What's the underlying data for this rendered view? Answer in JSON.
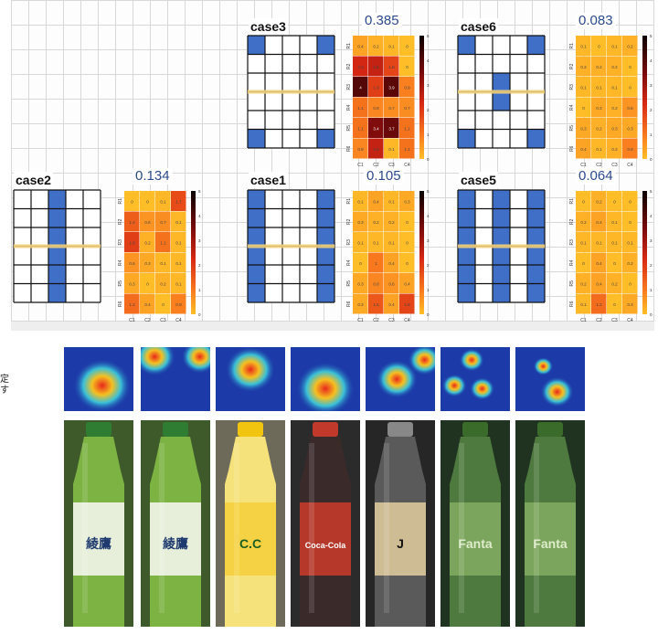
{
  "side_text": "定す",
  "colorbar_ticks": [
    "5",
    "4",
    "3",
    "2",
    "1",
    "0"
  ],
  "heatmap_row_labels": [
    "R1",
    "R2",
    "R3",
    "R4",
    "R5",
    "R6"
  ],
  "heatmap_col_labels": [
    "C1",
    "C2",
    "C3",
    "C4"
  ],
  "cases": [
    {
      "id": "case3",
      "label": "case3",
      "score": "0.385",
      "blue_cells": [
        [
          0,
          0
        ],
        [
          0,
          4
        ],
        [
          5,
          0
        ],
        [
          5,
          4
        ]
      ],
      "heat": [
        [
          "0.4",
          "0.2",
          "0.1",
          "0"
        ],
        [
          "2.3",
          "2.5",
          "1.8",
          "0"
        ],
        [
          "4",
          "1.9",
          "3.9",
          "0.9"
        ],
        [
          "1.1",
          "0.8",
          "0.7",
          "0.7"
        ],
        [
          "1.1",
          "3.4",
          "3.7",
          "1.1"
        ],
        [
          "0.8",
          "2.5",
          "0.1",
          "1.1"
        ]
      ]
    },
    {
      "id": "case6",
      "label": "case6",
      "score": "0.083",
      "blue_cells": [
        [
          0,
          0
        ],
        [
          0,
          4
        ],
        [
          2,
          2
        ],
        [
          3,
          2
        ],
        [
          5,
          0
        ],
        [
          5,
          4
        ]
      ],
      "heat": [
        [
          "0.1",
          "0",
          "0.1",
          "0.2"
        ],
        [
          "0.2",
          "0.2",
          "0.2",
          "0"
        ],
        [
          "0.1",
          "0.1",
          "0.1",
          "0"
        ],
        [
          "0",
          "0.3",
          "0.2",
          "0.6"
        ],
        [
          "0.3",
          "0.2",
          "0.3",
          "0.3"
        ],
        [
          "0.4",
          "0.1",
          "0.2",
          "0.9"
        ]
      ]
    },
    {
      "id": "case2",
      "label": "case2",
      "score": "0.134",
      "blue_cells": [
        [
          0,
          2
        ],
        [
          1,
          2
        ],
        [
          2,
          2
        ],
        [
          3,
          2
        ],
        [
          4,
          2
        ],
        [
          5,
          2
        ]
      ],
      "heat": [
        [
          "0",
          "0",
          "0.1",
          "1.7"
        ],
        [
          "1.4",
          "0.6",
          "0.7",
          "0.1"
        ],
        [
          "1.9",
          "0.2",
          "1.1",
          "0.1"
        ],
        [
          "0.6",
          "0.3",
          "0.1",
          "0.1"
        ],
        [
          "0.3",
          "0",
          "0.2",
          "0.1"
        ],
        [
          "1.2",
          "0.4",
          "0",
          "0.9"
        ]
      ]
    },
    {
      "id": "case1",
      "label": "case1",
      "score": "0.105",
      "blue_cells": [
        [
          0,
          0
        ],
        [
          1,
          0
        ],
        [
          2,
          0
        ],
        [
          3,
          0
        ],
        [
          4,
          0
        ],
        [
          5,
          0
        ],
        [
          0,
          4
        ],
        [
          1,
          4
        ],
        [
          2,
          4
        ],
        [
          3,
          4
        ],
        [
          4,
          4
        ],
        [
          5,
          4
        ]
      ],
      "heat": [
        [
          "0.1",
          "0.4",
          "0.1",
          "0.3"
        ],
        [
          "0.3",
          "0.2",
          "0.2",
          "0"
        ],
        [
          "0.1",
          "0.1",
          "0.1",
          "0"
        ],
        [
          "0",
          "1",
          "0.4",
          "0"
        ],
        [
          "0.3",
          "0.8",
          "0.6",
          "0.4"
        ],
        [
          "0.3",
          "1.5",
          "0.4",
          "1.8"
        ]
      ]
    },
    {
      "id": "case5",
      "label": "case5",
      "score": "0.064",
      "blue_cells": [
        [
          0,
          0
        ],
        [
          1,
          0
        ],
        [
          2,
          0
        ],
        [
          3,
          0
        ],
        [
          4,
          0
        ],
        [
          5,
          0
        ],
        [
          0,
          2
        ],
        [
          1,
          2
        ],
        [
          2,
          2
        ],
        [
          3,
          2
        ],
        [
          4,
          2
        ],
        [
          5,
          2
        ],
        [
          0,
          4
        ],
        [
          1,
          4
        ],
        [
          2,
          4
        ],
        [
          3,
          4
        ],
        [
          4,
          4
        ],
        [
          5,
          4
        ]
      ],
      "heat": [
        [
          "0",
          "0.2",
          "0",
          "0"
        ],
        [
          "0.2",
          "0.4",
          "0.1",
          "0"
        ],
        [
          "0.1",
          "0.1",
          "0.1",
          "0.1"
        ],
        [
          "0",
          "0.4",
          "0",
          "0.2"
        ],
        [
          "0.2",
          "0.4",
          "0.2",
          "0"
        ],
        [
          "0.1",
          "1.2",
          "0",
          "0.3"
        ]
      ]
    }
  ],
  "photos": [
    {
      "id": "bottle-1",
      "bottle": "green-tea",
      "bottle_text": "綾鷹"
    },
    {
      "id": "bottle-2",
      "bottle": "green-tea",
      "bottle_text": "綾鷹"
    },
    {
      "id": "bottle-3",
      "bottle": "yellow-cc",
      "bottle_text": "C.C"
    },
    {
      "id": "bottle-4",
      "bottle": "cola",
      "bottle_text": "Coca-Cola"
    },
    {
      "id": "bottle-5",
      "bottle": "dark-clear",
      "bottle_text": "J"
    },
    {
      "id": "bottle-6",
      "bottle": "green-soda",
      "bottle_text": "Fanta"
    },
    {
      "id": "bottle-7",
      "bottle": "green-soda",
      "bottle_text": "Fanta"
    }
  ]
}
